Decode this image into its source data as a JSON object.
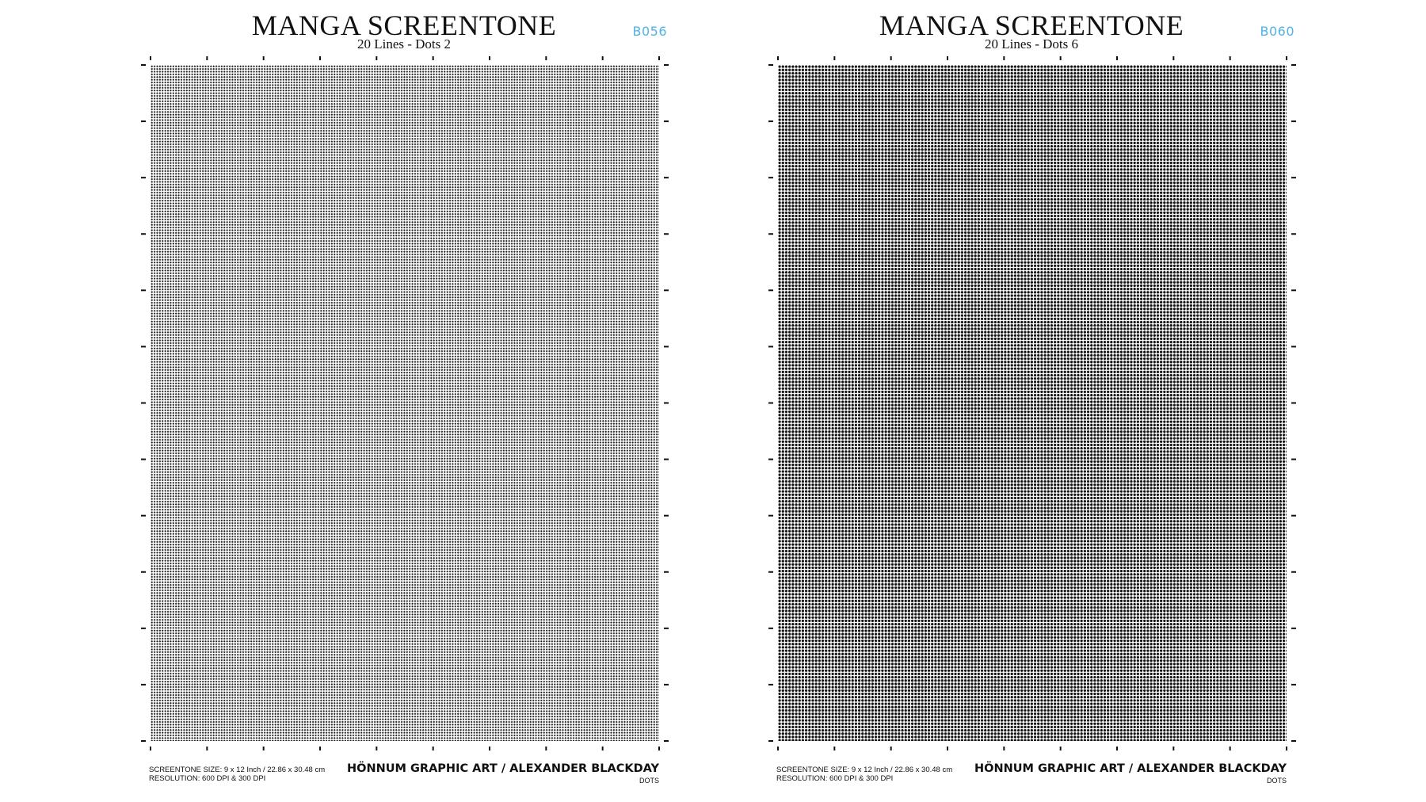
{
  "sheets": [
    {
      "title": "MANGA SCREENTONE",
      "subtitle": "20 Lines - Dots 2",
      "code": "B056",
      "size_line": "SCREENTONE SIZE: 9 x 12 Inch / 22.86 x 30.48 cm",
      "resolution_line": "RESOLUTION: 600 DPI & 300 DPI",
      "credit": "HÖNNUM GRAPHIC ART / ALEXANDER BLACKDAY",
      "category": "DOTS",
      "tone": "light"
    },
    {
      "title": "MANGA SCREENTONE",
      "subtitle": "20 Lines - Dots 6",
      "code": "B060",
      "size_line": "SCREENTONE SIZE: 9 x 12 Inch / 22.86 x 30.48 cm",
      "resolution_line": "RESOLUTION: 600 DPI & 300 DPI",
      "credit": "HÖNNUM GRAPHIC ART / ALEXANDER BLACKDAY",
      "category": "DOTS",
      "tone": "dark"
    }
  ],
  "colors": {
    "code": "#4fb3e8",
    "text": "#111111",
    "background": "#ffffff"
  }
}
